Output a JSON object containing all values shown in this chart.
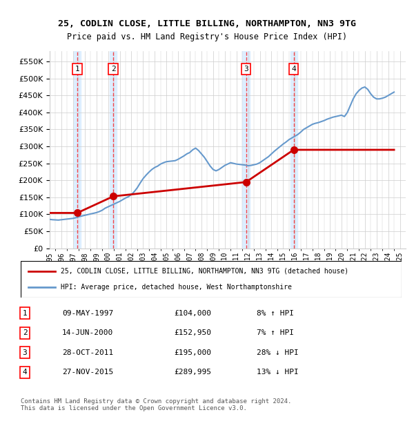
{
  "title": "25, CODLIN CLOSE, LITTLE BILLING, NORTHAMPTON, NN3 9TG",
  "subtitle": "Price paid vs. HM Land Registry's House Price Index (HPI)",
  "ylabel": "",
  "ylim": [
    0,
    580000
  ],
  "yticks": [
    0,
    50000,
    100000,
    150000,
    200000,
    250000,
    300000,
    350000,
    400000,
    450000,
    500000,
    550000
  ],
  "xlim_start": 1995.0,
  "xlim_end": 2025.5,
  "transactions": [
    {
      "num": 1,
      "date": 1997.36,
      "price": 104000,
      "label": "1"
    },
    {
      "num": 2,
      "date": 2000.45,
      "price": 152950,
      "label": "2"
    },
    {
      "num": 3,
      "date": 2011.82,
      "price": 195000,
      "label": "3"
    },
    {
      "num": 4,
      "date": 2015.9,
      "price": 289995,
      "label": "4"
    }
  ],
  "transaction_table": [
    {
      "num": "1",
      "date": "09-MAY-1997",
      "price": "£104,000",
      "hpi": "8% ↑ HPI"
    },
    {
      "num": "2",
      "date": "14-JUN-2000",
      "price": "£152,950",
      "hpi": "7% ↑ HPI"
    },
    {
      "num": "3",
      "date": "28-OCT-2011",
      "price": "£195,000",
      "hpi": "28% ↓ HPI"
    },
    {
      "num": "4",
      "date": "27-NOV-2015",
      "price": "£289,995",
      "hpi": "13% ↓ HPI"
    }
  ],
  "legend_property": "25, CODLIN CLOSE, LITTLE BILLING, NORTHAMPTON, NN3 9TG (detached house)",
  "legend_hpi": "HPI: Average price, detached house, West Northamptonshire",
  "footer": "Contains HM Land Registry data © Crown copyright and database right 2024.\nThis data is licensed under the Open Government Licence v3.0.",
  "property_color": "#cc0000",
  "hpi_color": "#6699cc",
  "highlight_color": "#ddeeff",
  "grid_color": "#cccccc",
  "hpi_data": {
    "years": [
      1995.0,
      1995.25,
      1995.5,
      1995.75,
      1996.0,
      1996.25,
      1996.5,
      1996.75,
      1997.0,
      1997.25,
      1997.5,
      1997.75,
      1998.0,
      1998.25,
      1998.5,
      1998.75,
      1999.0,
      1999.25,
      1999.5,
      1999.75,
      2000.0,
      2000.25,
      2000.5,
      2000.75,
      2001.0,
      2001.25,
      2001.5,
      2001.75,
      2002.0,
      2002.25,
      2002.5,
      2002.75,
      2003.0,
      2003.25,
      2003.5,
      2003.75,
      2004.0,
      2004.25,
      2004.5,
      2004.75,
      2005.0,
      2005.25,
      2005.5,
      2005.75,
      2006.0,
      2006.25,
      2006.5,
      2006.75,
      2007.0,
      2007.25,
      2007.5,
      2007.75,
      2008.0,
      2008.25,
      2008.5,
      2008.75,
      2009.0,
      2009.25,
      2009.5,
      2009.75,
      2010.0,
      2010.25,
      2010.5,
      2010.75,
      2011.0,
      2011.25,
      2011.5,
      2011.75,
      2012.0,
      2012.25,
      2012.5,
      2012.75,
      2013.0,
      2013.25,
      2013.5,
      2013.75,
      2014.0,
      2014.25,
      2014.5,
      2014.75,
      2015.0,
      2015.25,
      2015.5,
      2015.75,
      2016.0,
      2016.25,
      2016.5,
      2016.75,
      2017.0,
      2017.25,
      2017.5,
      2017.75,
      2018.0,
      2018.25,
      2018.5,
      2018.75,
      2019.0,
      2019.25,
      2019.5,
      2019.75,
      2020.0,
      2020.25,
      2020.5,
      2020.75,
      2021.0,
      2021.25,
      2021.5,
      2021.75,
      2022.0,
      2022.25,
      2022.5,
      2022.75,
      2023.0,
      2023.25,
      2023.5,
      2023.75,
      2024.0,
      2024.25,
      2024.5
    ],
    "values": [
      85000,
      84000,
      83500,
      83000,
      84000,
      85000,
      86000,
      87000,
      88000,
      90000,
      93000,
      95000,
      97000,
      99000,
      101000,
      103000,
      105000,
      108000,
      112000,
      118000,
      122000,
      126000,
      130000,
      134000,
      138000,
      143000,
      148000,
      152000,
      158000,
      167000,
      178000,
      192000,
      205000,
      215000,
      224000,
      232000,
      238000,
      242000,
      248000,
      252000,
      255000,
      256000,
      257000,
      258000,
      262000,
      267000,
      272000,
      278000,
      282000,
      290000,
      295000,
      288000,
      278000,
      268000,
      255000,
      242000,
      232000,
      228000,
      232000,
      238000,
      244000,
      248000,
      252000,
      250000,
      248000,
      247000,
      246000,
      245000,
      243000,
      244000,
      246000,
      248000,
      252000,
      258000,
      264000,
      270000,
      278000,
      286000,
      293000,
      300000,
      307000,
      313000,
      320000,
      325000,
      330000,
      335000,
      342000,
      350000,
      355000,
      360000,
      365000,
      368000,
      370000,
      373000,
      376000,
      380000,
      383000,
      386000,
      388000,
      390000,
      392000,
      388000,
      400000,
      420000,
      440000,
      455000,
      465000,
      472000,
      475000,
      468000,
      455000,
      445000,
      440000,
      440000,
      442000,
      445000,
      450000,
      455000,
      460000
    ]
  },
  "property_line_data": {
    "years": [
      1997.36,
      2000.45,
      2011.82,
      2015.9
    ],
    "values": [
      104000,
      152950,
      195000,
      289995
    ]
  },
  "xtick_years": [
    1995,
    1996,
    1997,
    1998,
    1999,
    2000,
    2001,
    2002,
    2003,
    2004,
    2005,
    2006,
    2007,
    2008,
    2009,
    2010,
    2011,
    2012,
    2013,
    2014,
    2015,
    2016,
    2017,
    2018,
    2019,
    2020,
    2021,
    2022,
    2023,
    2024,
    2025
  ]
}
